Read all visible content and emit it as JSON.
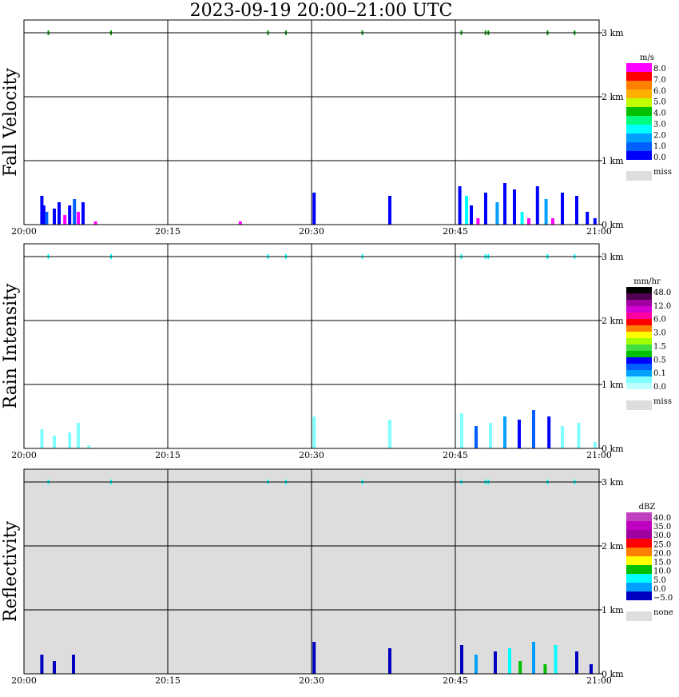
{
  "title": "2023-09-19   20:00–21:00 UTC",
  "x_ticks": [
    "20:00",
    "20:15",
    "20:30",
    "20:45",
    "21:00"
  ],
  "height_ticks": [
    "0 km",
    "1 km",
    "2 km",
    "3 km"
  ],
  "chart_data": [
    {
      "type": "heatmap",
      "ylabel": "Fall Velocity",
      "xlabel": "",
      "x_range": [
        "20:00",
        "21:00"
      ],
      "y_range_km": [
        0,
        3.2
      ],
      "grid": true,
      "background": "#ffffff",
      "legend": {
        "unit": "m/s",
        "position": "right",
        "colors": [
          "#ff00ff",
          "#ff0000",
          "#ff8000",
          "#ffb000",
          "#c0ff00",
          "#00c000",
          "#00ff80",
          "#00ffff",
          "#00a0ff",
          "#0060ff",
          "#0000ff"
        ],
        "labels": [
          "8.0",
          "7.0",
          "6.0",
          "5.0",
          "4.0",
          "3.0",
          "2.0",
          "1.0",
          "0.0"
        ],
        "missing_label": "miss",
        "missing_color": "#dddddd"
      },
      "cells": [
        {
          "t": 1.7,
          "h": 0.45,
          "c": "#0000ff"
        },
        {
          "t": 1.9,
          "h": 0.3,
          "c": "#0000ff"
        },
        {
          "t": 2.2,
          "h": 0.2,
          "c": "#0060ff"
        },
        {
          "t": 3.0,
          "h": 0.25,
          "c": "#0000ff"
        },
        {
          "t": 3.5,
          "h": 0.35,
          "c": "#0000ff"
        },
        {
          "t": 4.1,
          "h": 0.15,
          "c": "#ff00ff"
        },
        {
          "t": 4.6,
          "h": 0.3,
          "c": "#0000ff"
        },
        {
          "t": 5.1,
          "h": 0.4,
          "c": "#0060ff"
        },
        {
          "t": 5.5,
          "h": 0.2,
          "c": "#ff00ff"
        },
        {
          "t": 6.0,
          "h": 0.35,
          "c": "#0000ff"
        },
        {
          "t": 7.3,
          "h": 0.05,
          "c": "#ff00ff"
        },
        {
          "t": 22.4,
          "h": 0.05,
          "c": "#ff00ff"
        },
        {
          "t": 30.1,
          "h": 0.5,
          "c": "#0000ff"
        },
        {
          "t": 38.0,
          "h": 0.45,
          "c": "#0000ff"
        },
        {
          "t": 45.3,
          "h": 0.6,
          "c": "#0000ff"
        },
        {
          "t": 46.0,
          "h": 0.45,
          "c": "#00ffff"
        },
        {
          "t": 46.5,
          "h": 0.3,
          "c": "#0000ff"
        },
        {
          "t": 47.2,
          "h": 0.1,
          "c": "#ff00ff"
        },
        {
          "t": 48.0,
          "h": 0.5,
          "c": "#0000ff"
        },
        {
          "t": 49.2,
          "h": 0.35,
          "c": "#00a0ff"
        },
        {
          "t": 50.0,
          "h": 0.65,
          "c": "#0000ff"
        },
        {
          "t": 51.0,
          "h": 0.55,
          "c": "#0000ff"
        },
        {
          "t": 51.8,
          "h": 0.2,
          "c": "#00ffff"
        },
        {
          "t": 52.5,
          "h": 0.1,
          "c": "#ff00ff"
        },
        {
          "t": 53.4,
          "h": 0.6,
          "c": "#0000ff"
        },
        {
          "t": 54.3,
          "h": 0.4,
          "c": "#00a0ff"
        },
        {
          "t": 55.0,
          "h": 0.1,
          "c": "#ff00ff"
        },
        {
          "t": 56.0,
          "h": 0.5,
          "c": "#0000ff"
        },
        {
          "t": 57.5,
          "h": 0.45,
          "c": "#0000ff"
        },
        {
          "t": 58.6,
          "h": 0.2,
          "c": "#0000ff"
        },
        {
          "t": 59.4,
          "h": 0.1,
          "c": "#0000ff"
        }
      ]
    },
    {
      "type": "heatmap",
      "ylabel": "Rain Intensity",
      "xlabel": "",
      "x_range": [
        "20:00",
        "21:00"
      ],
      "y_range_km": [
        0,
        3.2
      ],
      "grid": true,
      "background": "#ffffff",
      "legend": {
        "unit": "mm/hr",
        "position": "right",
        "colors": [
          "#000000",
          "#500050",
          "#a000a0",
          "#d000d0",
          "#ff00a0",
          "#ff0000",
          "#ff8000",
          "#ffff00",
          "#a0ff00",
          "#40e040",
          "#00c000",
          "#0000ff",
          "#0060ff",
          "#00a0ff",
          "#80ffff",
          "#c0ffff"
        ],
        "labels": [
          "48.0",
          "12.0",
          "6.0",
          "3.0",
          "1.5",
          "0.5",
          "0.1",
          "0.0"
        ],
        "missing_label": "miss",
        "missing_color": "#dddddd"
      },
      "cells": [
        {
          "t": 1.7,
          "h": 0.3,
          "c": "#80ffff"
        },
        {
          "t": 3.0,
          "h": 0.2,
          "c": "#80ffff"
        },
        {
          "t": 4.6,
          "h": 0.25,
          "c": "#80ffff"
        },
        {
          "t": 5.5,
          "h": 0.4,
          "c": "#80ffff"
        },
        {
          "t": 6.6,
          "h": 0.05,
          "c": "#80ffff"
        },
        {
          "t": 30.1,
          "h": 0.5,
          "c": "#80ffff"
        },
        {
          "t": 38.0,
          "h": 0.45,
          "c": "#80ffff"
        },
        {
          "t": 45.5,
          "h": 0.55,
          "c": "#80ffff"
        },
        {
          "t": 47.0,
          "h": 0.35,
          "c": "#0060ff"
        },
        {
          "t": 48.5,
          "h": 0.4,
          "c": "#80ffff"
        },
        {
          "t": 50.0,
          "h": 0.5,
          "c": "#00a0ff"
        },
        {
          "t": 51.5,
          "h": 0.45,
          "c": "#0000ff"
        },
        {
          "t": 53.0,
          "h": 0.6,
          "c": "#0060ff"
        },
        {
          "t": 54.6,
          "h": 0.5,
          "c": "#0000ff"
        },
        {
          "t": 56.0,
          "h": 0.35,
          "c": "#80ffff"
        },
        {
          "t": 57.7,
          "h": 0.4,
          "c": "#80ffff"
        },
        {
          "t": 59.4,
          "h": 0.1,
          "c": "#80ffff"
        }
      ]
    },
    {
      "type": "heatmap",
      "ylabel": "Reflectivity",
      "xlabel": "",
      "x_range": [
        "20:00",
        "21:00"
      ],
      "y_range_km": [
        0,
        3.2
      ],
      "grid": true,
      "background": "#dddddd",
      "legend": {
        "unit": "dBZ",
        "position": "right",
        "colors": [
          "#c040c0",
          "#c000c0",
          "#a000a0",
          "#ff0000",
          "#ff8000",
          "#ffff00",
          "#00c000",
          "#00ffff",
          "#00a0ff",
          "#0000c0"
        ],
        "labels": [
          "40.0",
          "35.0",
          "30.0",
          "25.0",
          "20.0",
          "15.0",
          "10.0",
          "5.0",
          "0.0",
          "−5.0"
        ],
        "missing_label": "none",
        "missing_color": "#dddddd"
      },
      "cells": [
        {
          "t": 1.7,
          "h": 0.3,
          "c": "#0000c0"
        },
        {
          "t": 3.0,
          "h": 0.2,
          "c": "#0000c0"
        },
        {
          "t": 5.0,
          "h": 0.3,
          "c": "#0000c0"
        },
        {
          "t": 30.1,
          "h": 0.5,
          "c": "#0000c0"
        },
        {
          "t": 38.0,
          "h": 0.4,
          "c": "#0000c0"
        },
        {
          "t": 45.5,
          "h": 0.45,
          "c": "#0000c0"
        },
        {
          "t": 47.0,
          "h": 0.3,
          "c": "#00a0ff"
        },
        {
          "t": 49.0,
          "h": 0.35,
          "c": "#0000c0"
        },
        {
          "t": 50.5,
          "h": 0.4,
          "c": "#00ffff"
        },
        {
          "t": 51.6,
          "h": 0.2,
          "c": "#00c000"
        },
        {
          "t": 53.0,
          "h": 0.5,
          "c": "#00a0ff"
        },
        {
          "t": 54.2,
          "h": 0.15,
          "c": "#00c000"
        },
        {
          "t": 55.3,
          "h": 0.45,
          "c": "#00ffff"
        },
        {
          "t": 57.5,
          "h": 0.35,
          "c": "#0000c0"
        },
        {
          "t": 59.0,
          "h": 0.15,
          "c": "#0000c0"
        }
      ]
    }
  ]
}
